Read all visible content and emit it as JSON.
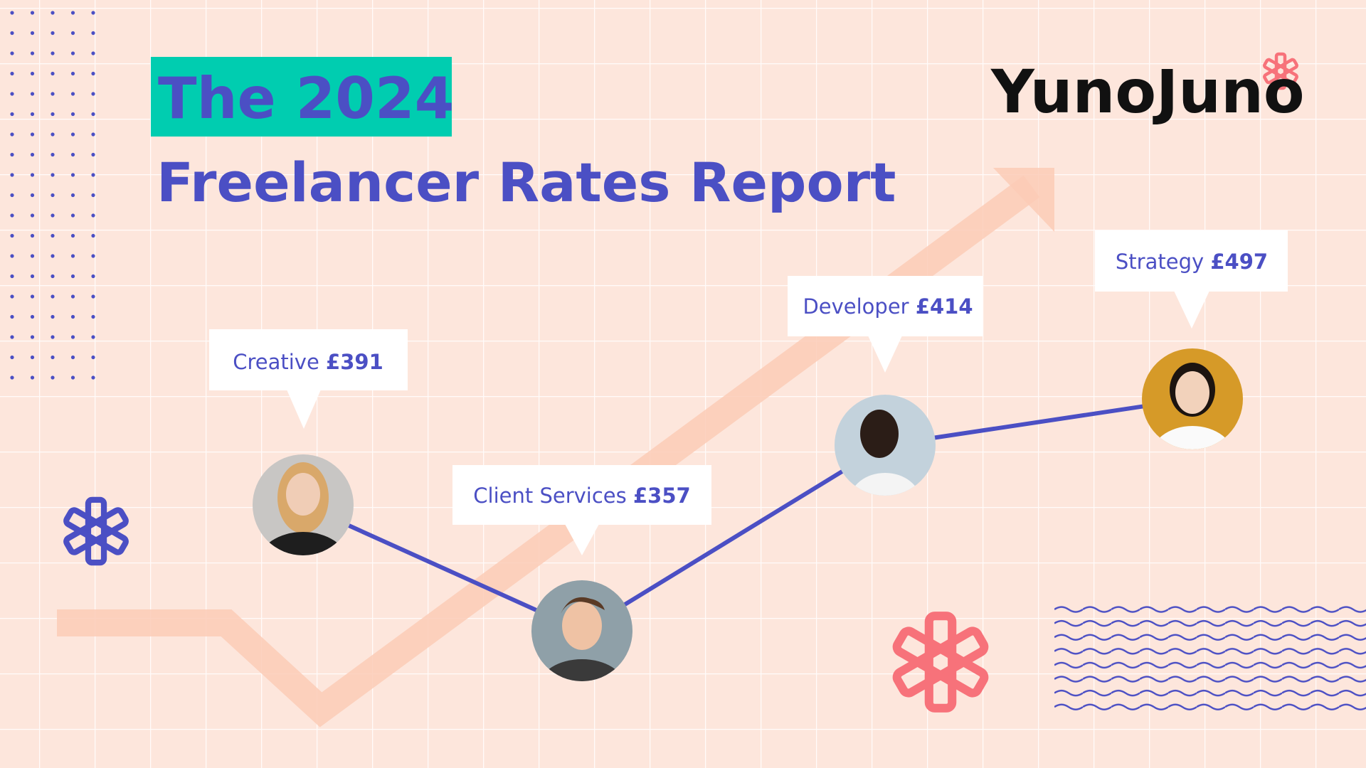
{
  "header": {
    "badge": "The 2024",
    "title": "Freelancer Rates Report",
    "logo": "YunoJuno"
  },
  "callouts": [
    {
      "role": "Creative",
      "rate": "£391"
    },
    {
      "role": "Client Services",
      "rate": "£357"
    },
    {
      "role": "Developer",
      "rate": "£414"
    },
    {
      "role": "Strategy",
      "rate": "£497"
    }
  ]
}
